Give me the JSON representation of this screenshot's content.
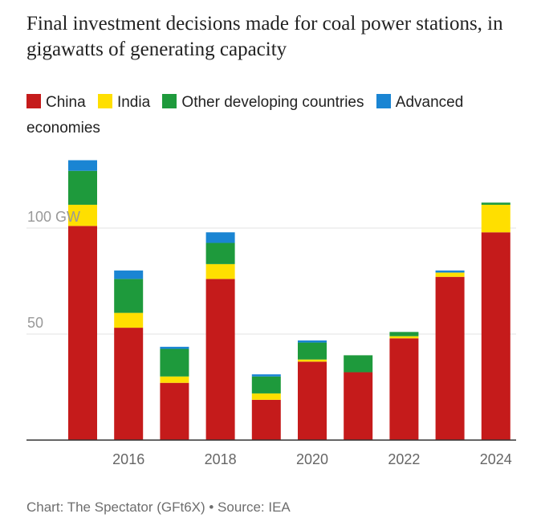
{
  "chart_data": {
    "type": "bar",
    "stacked": true,
    "title": "Final investment decisions made for coal power stations, in gigawatts of generating capacity",
    "xlabel": "",
    "ylabel": "",
    "ylim": [
      0,
      135
    ],
    "x": [
      2015,
      2016,
      2017,
      2018,
      2019,
      2020,
      2021,
      2022,
      2023,
      2024
    ],
    "x_tick_values": [
      2016,
      2018,
      2020,
      2022,
      2024
    ],
    "x_tick_labels": [
      "2016",
      "2018",
      "2020",
      "2022",
      "2024"
    ],
    "y_ticks": [
      {
        "value": 50,
        "label": "50"
      },
      {
        "value": 100,
        "label": "100 GW"
      }
    ],
    "grid": true,
    "legend_position": "top",
    "series": [
      {
        "name": "China",
        "color": "#c51b1b",
        "values": [
          101,
          53,
          27,
          76,
          19,
          37,
          32,
          48,
          77,
          98
        ]
      },
      {
        "name": "India",
        "color": "#ffdf00",
        "values": [
          10,
          7,
          3,
          7,
          3,
          1,
          0,
          1,
          2,
          13
        ]
      },
      {
        "name": "Other developing countries",
        "color": "#1e9a3c",
        "values": [
          16,
          16,
          13,
          10,
          8,
          8,
          8,
          2,
          0,
          1
        ]
      },
      {
        "name": "Advanced economies",
        "color": "#1a85d3",
        "values": [
          5,
          4,
          1,
          5,
          1,
          1,
          0,
          0,
          1,
          0
        ]
      }
    ],
    "source": "Chart: The Spectator (GFt6X) • Source: IEA"
  }
}
